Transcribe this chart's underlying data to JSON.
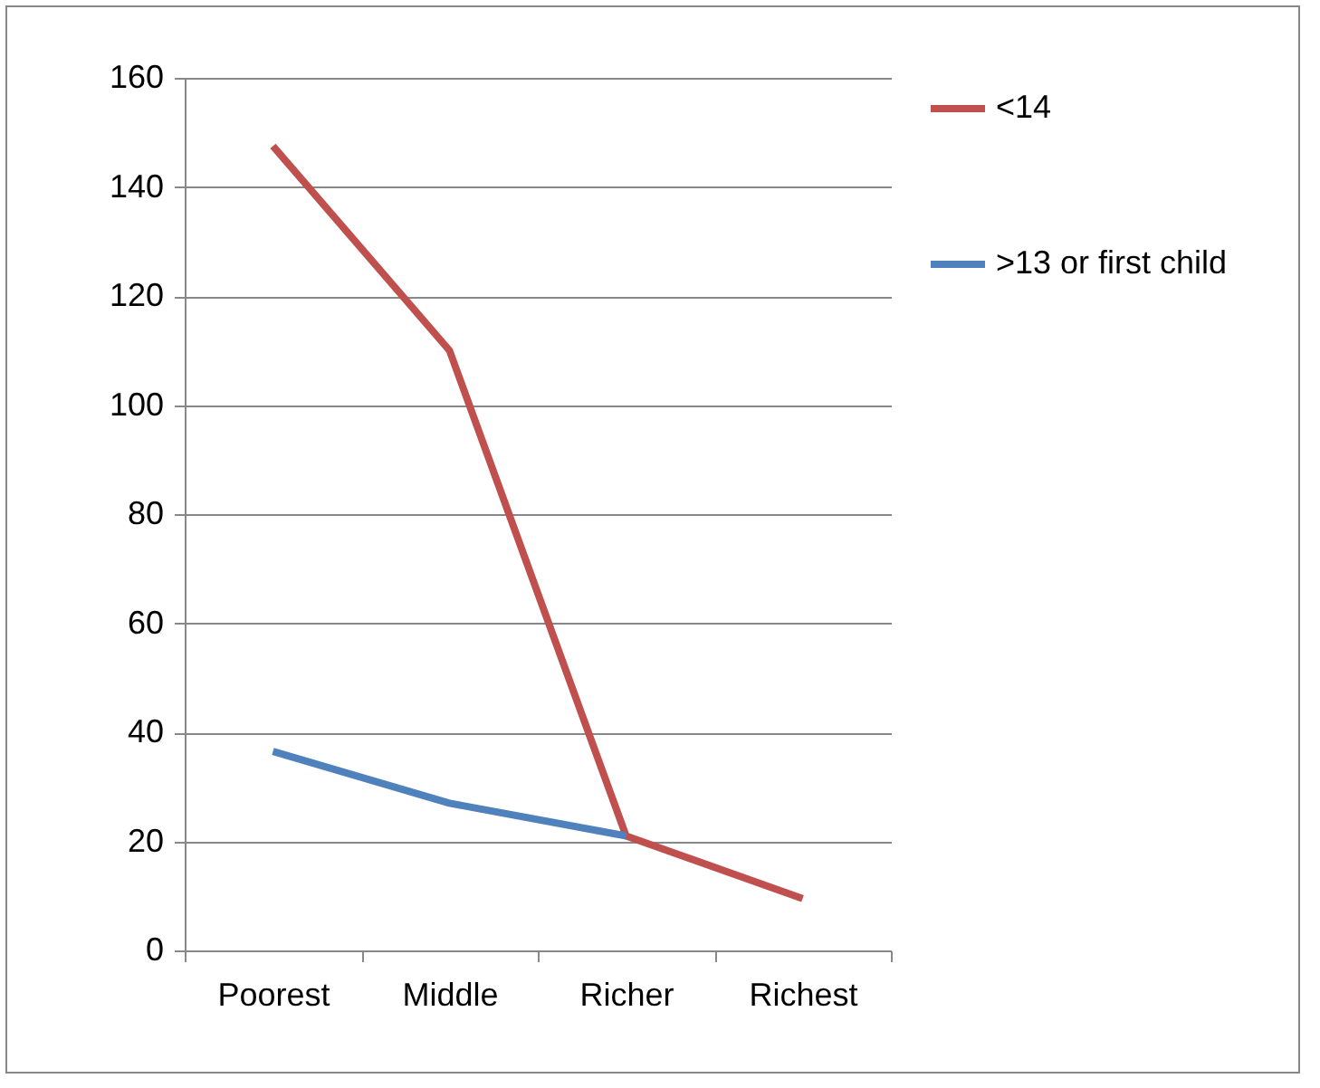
{
  "chart_data": {
    "type": "line",
    "categories": [
      "Poorest",
      "Middle",
      "Richer",
      "Richest"
    ],
    "series": [
      {
        "name": "<14",
        "color": "#c0504d",
        "values": [
          147.5,
          110,
          21,
          9.5
        ]
      },
      {
        "name": ">13 or first child",
        "color": "#4f81bd",
        "values": [
          36.5,
          27,
          21,
          null
        ]
      }
    ],
    "ylim": [
      0,
      160
    ],
    "yticks": [
      0,
      20,
      40,
      60,
      80,
      100,
      120,
      140,
      160
    ],
    "grid": "y",
    "legend": "right",
    "marker": "none",
    "line_style": "solid"
  }
}
